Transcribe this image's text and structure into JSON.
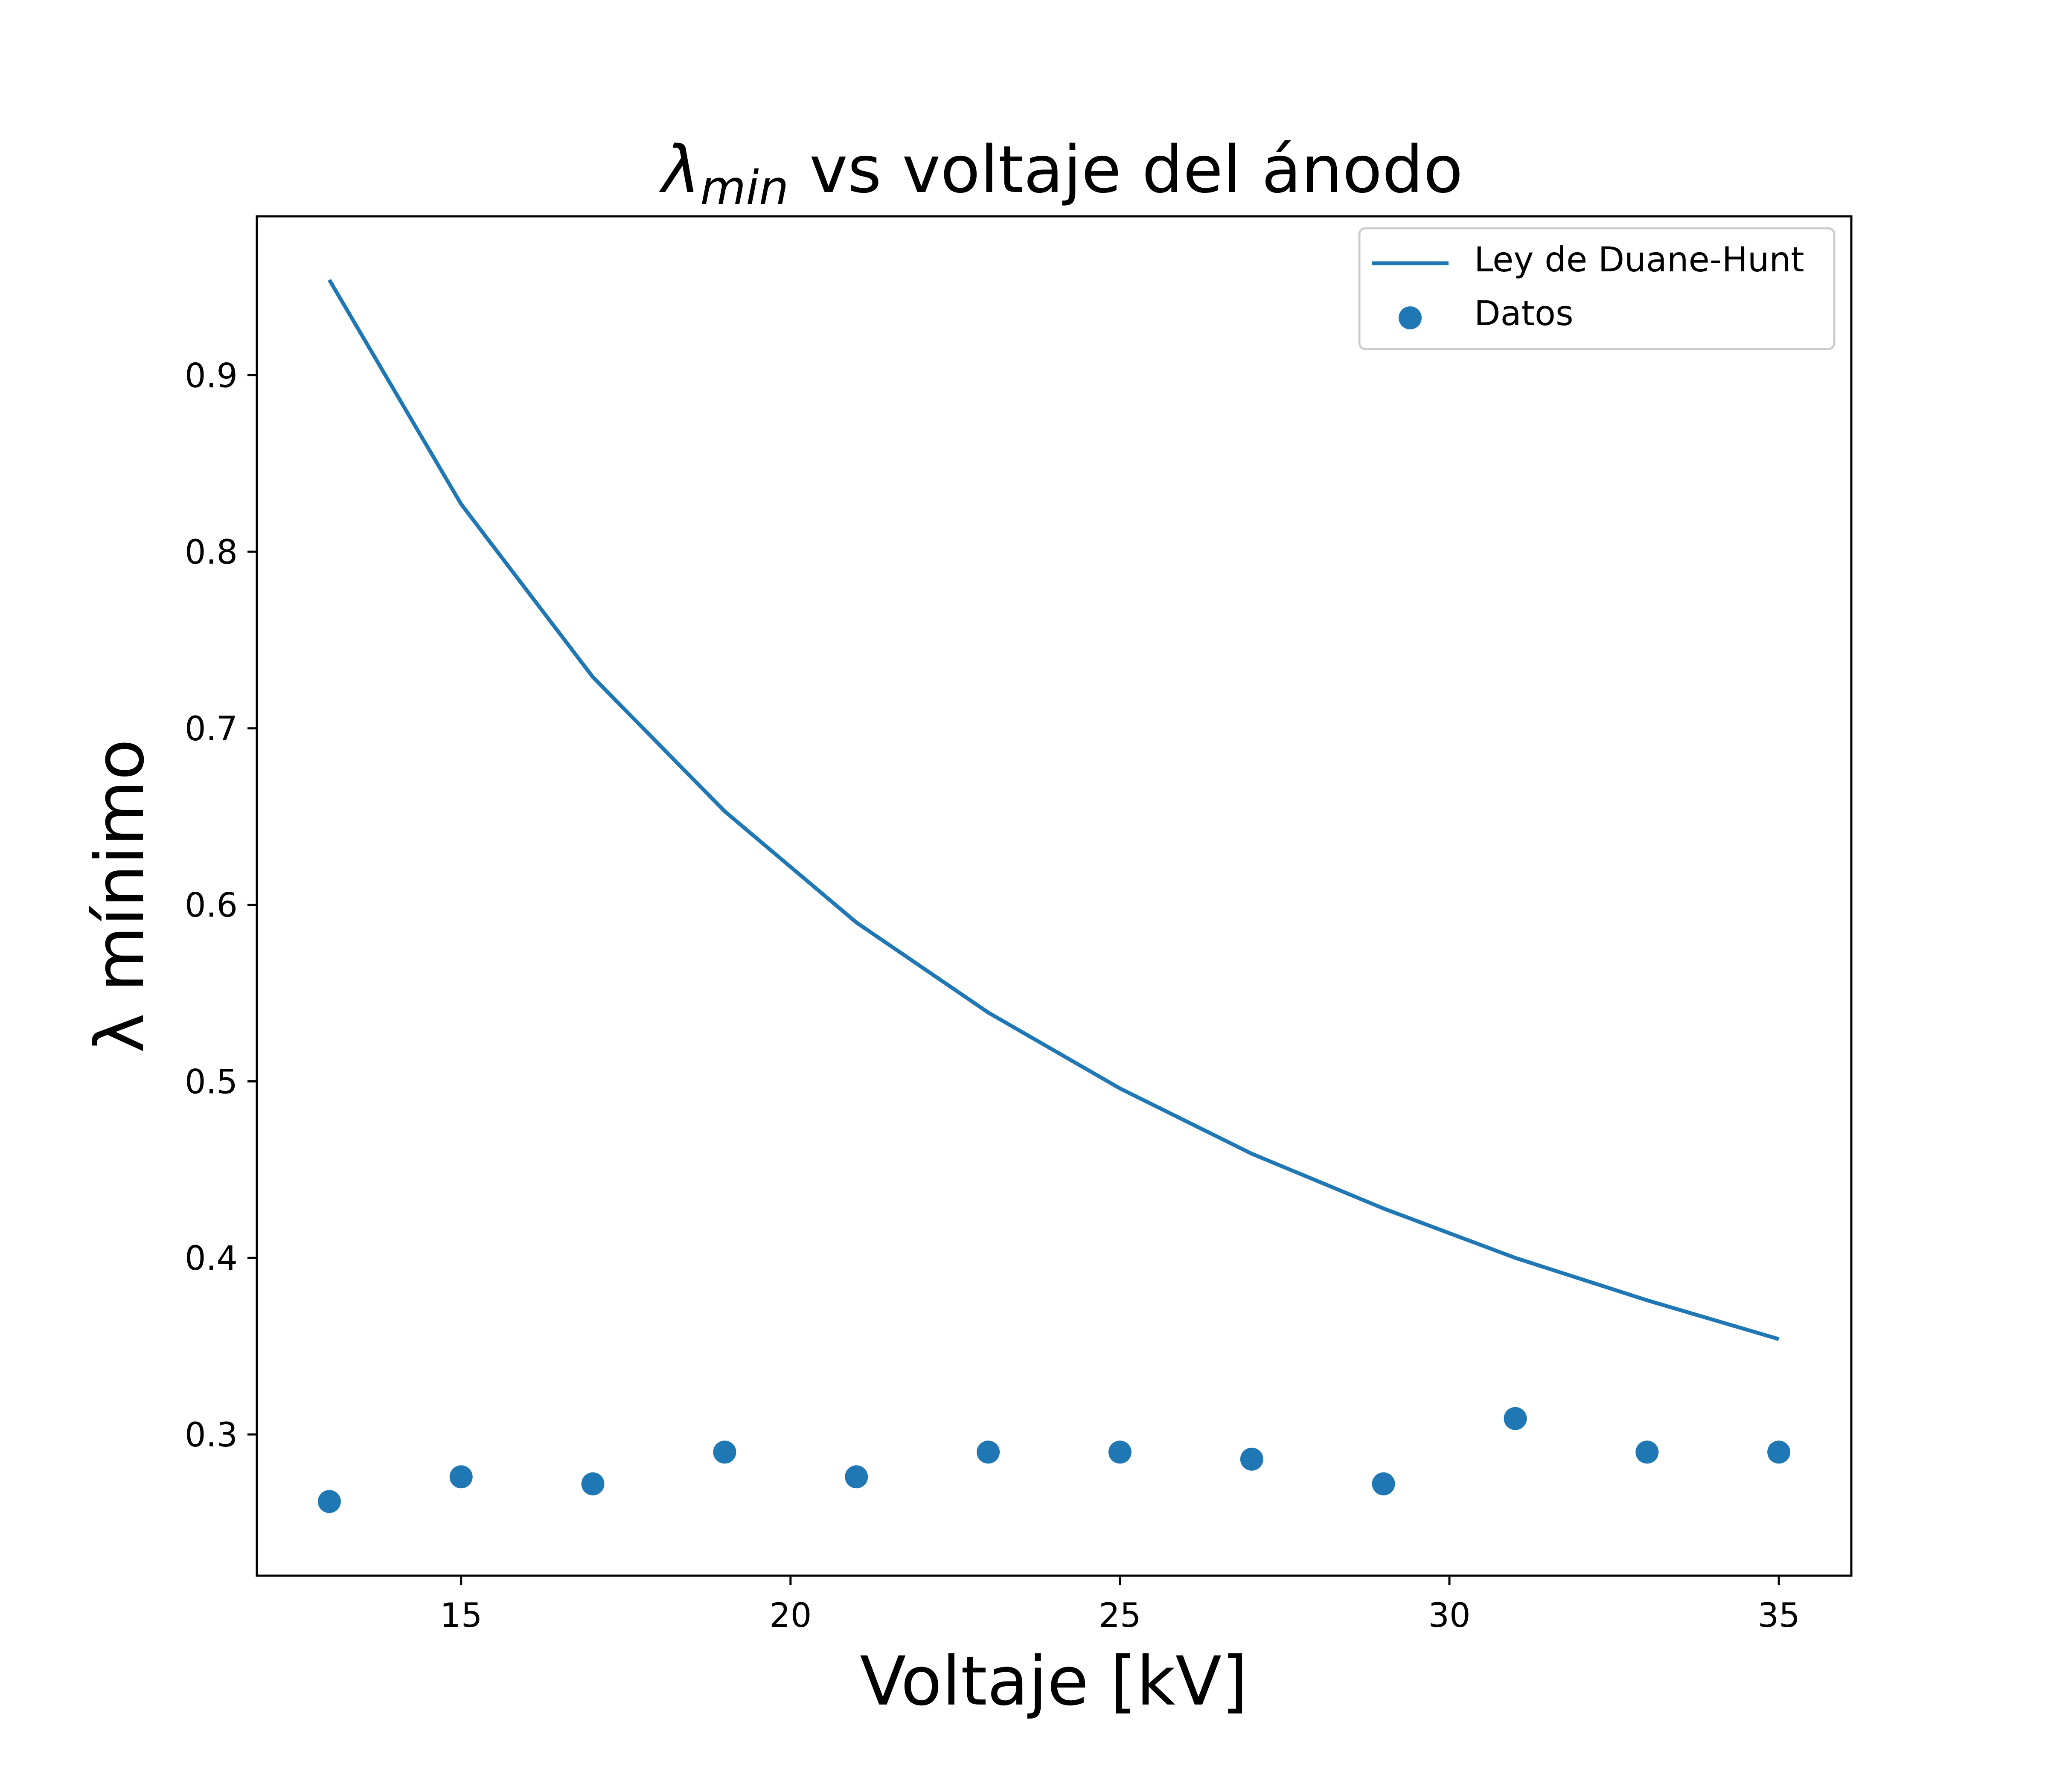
{
  "chart_data": {
    "type": "line",
    "title": {
      "symbol": "λ",
      "subscript": "min",
      "rest": " vs voltaje del ánodo"
    },
    "xlabel": "Voltaje [kV]",
    "ylabel": "λ mínimo",
    "xlim": [
      11.9,
      36.1
    ],
    "ylim": [
      0.22,
      0.99
    ],
    "x_ticks": [
      15,
      20,
      25,
      30,
      35
    ],
    "x_tick_labels": [
      "15",
      "20",
      "25",
      "30",
      "35"
    ],
    "y_ticks": [
      0.3,
      0.4,
      0.5,
      0.6,
      0.7,
      0.8,
      0.9
    ],
    "y_tick_labels": [
      "0.3",
      "0.4",
      "0.5",
      "0.6",
      "0.7",
      "0.8",
      "0.9"
    ],
    "grid": false,
    "legend_position": "top-right",
    "colors": {
      "series": "#1f77b4",
      "frame": "#000000",
      "legend_border": "#cccccc"
    },
    "series": [
      {
        "name": "Ley de Duane-Hunt",
        "kind": "line",
        "x": [
          13,
          15,
          17,
          19,
          21,
          23,
          25,
          27,
          29,
          31,
          33,
          35
        ],
        "y": [
          0.954,
          0.827,
          0.729,
          0.653,
          0.59,
          0.539,
          0.496,
          0.459,
          0.428,
          0.4,
          0.376,
          0.354
        ]
      },
      {
        "name": "Datos",
        "kind": "scatter",
        "x": [
          13,
          15,
          17,
          19,
          21,
          23,
          25,
          27,
          29,
          31,
          33,
          35
        ],
        "y": [
          0.262,
          0.276,
          0.272,
          0.29,
          0.276,
          0.29,
          0.29,
          0.286,
          0.272,
          0.309,
          0.29,
          0.29
        ]
      }
    ]
  }
}
